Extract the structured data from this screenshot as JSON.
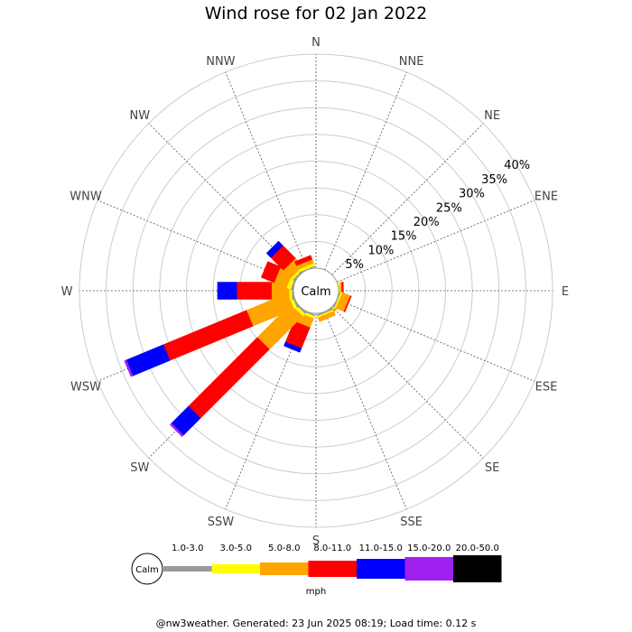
{
  "chart_data": {
    "type": "windrose",
    "title": "Wind rose for 02 Jan 2022",
    "directions": [
      "N",
      "NNE",
      "NE",
      "ENE",
      "E",
      "ESE",
      "SE",
      "SSE",
      "S",
      "SSW",
      "SW",
      "WSW",
      "W",
      "WNW",
      "NW",
      "NNW"
    ],
    "ring_labels": [
      "5%",
      "10%",
      "15%",
      "20%",
      "25%",
      "30%",
      "35%",
      "40%"
    ],
    "rmax_percent": 40,
    "calm_label": "Calm",
    "speed_unit": "mph",
    "speed_bins": [
      {
        "label": "1.0-3.0",
        "color": "#999999"
      },
      {
        "label": "3.0-5.0",
        "color": "#ffff00"
      },
      {
        "label": "5.0-8.0",
        "color": "#ffa500"
      },
      {
        "label": "8.0-11.0",
        "color": "#ff0000"
      },
      {
        "label": "11.0-15.0",
        "color": "#0000ff"
      },
      {
        "label": "15.0-20.0",
        "color": "#a020f0"
      },
      {
        "label": "20.0-50.0",
        "color": "#000000"
      }
    ],
    "series": [
      {
        "direction": "SE",
        "values": [
          0.2,
          0.3,
          0.5,
          0,
          0,
          0,
          0
        ]
      },
      {
        "direction": "SSE",
        "values": [
          0.3,
          0.3,
          0.8,
          0,
          0,
          0,
          0
        ]
      },
      {
        "direction": "E",
        "values": [
          0,
          0.3,
          0.3,
          0.3,
          0,
          0,
          0
        ]
      },
      {
        "direction": "ESE",
        "values": [
          0.2,
          0.3,
          1.6,
          0.2,
          0,
          0,
          0
        ]
      },
      {
        "direction": "SSW",
        "values": [
          0.3,
          0.5,
          1.8,
          4.2,
          0.8,
          0,
          0
        ]
      },
      {
        "direction": "SW",
        "values": [
          0.3,
          0.6,
          8.8,
          18.2,
          4.5,
          0.4,
          0
        ]
      },
      {
        "direction": "WSW",
        "values": [
          0.3,
          0.6,
          8.3,
          16.8,
          7.5,
          0.4,
          0
        ]
      },
      {
        "direction": "W",
        "values": [
          0.3,
          0.5,
          3.3,
          6.5,
          3.6,
          0,
          0
        ]
      },
      {
        "direction": "WNW",
        "values": [
          0.3,
          0.8,
          2.5,
          2.6,
          0,
          0,
          0
        ]
      },
      {
        "direction": "NW",
        "values": [
          0.3,
          0.5,
          2.0,
          3.3,
          1.2,
          0,
          0
        ]
      },
      {
        "direction": "NNW",
        "values": [
          0.2,
          0.5,
          0.8,
          0.8,
          0,
          0,
          0
        ]
      }
    ]
  },
  "footer": "@nw3weather. Generated: 23 Jun 2025 08:19; Load time: 0.12 s"
}
